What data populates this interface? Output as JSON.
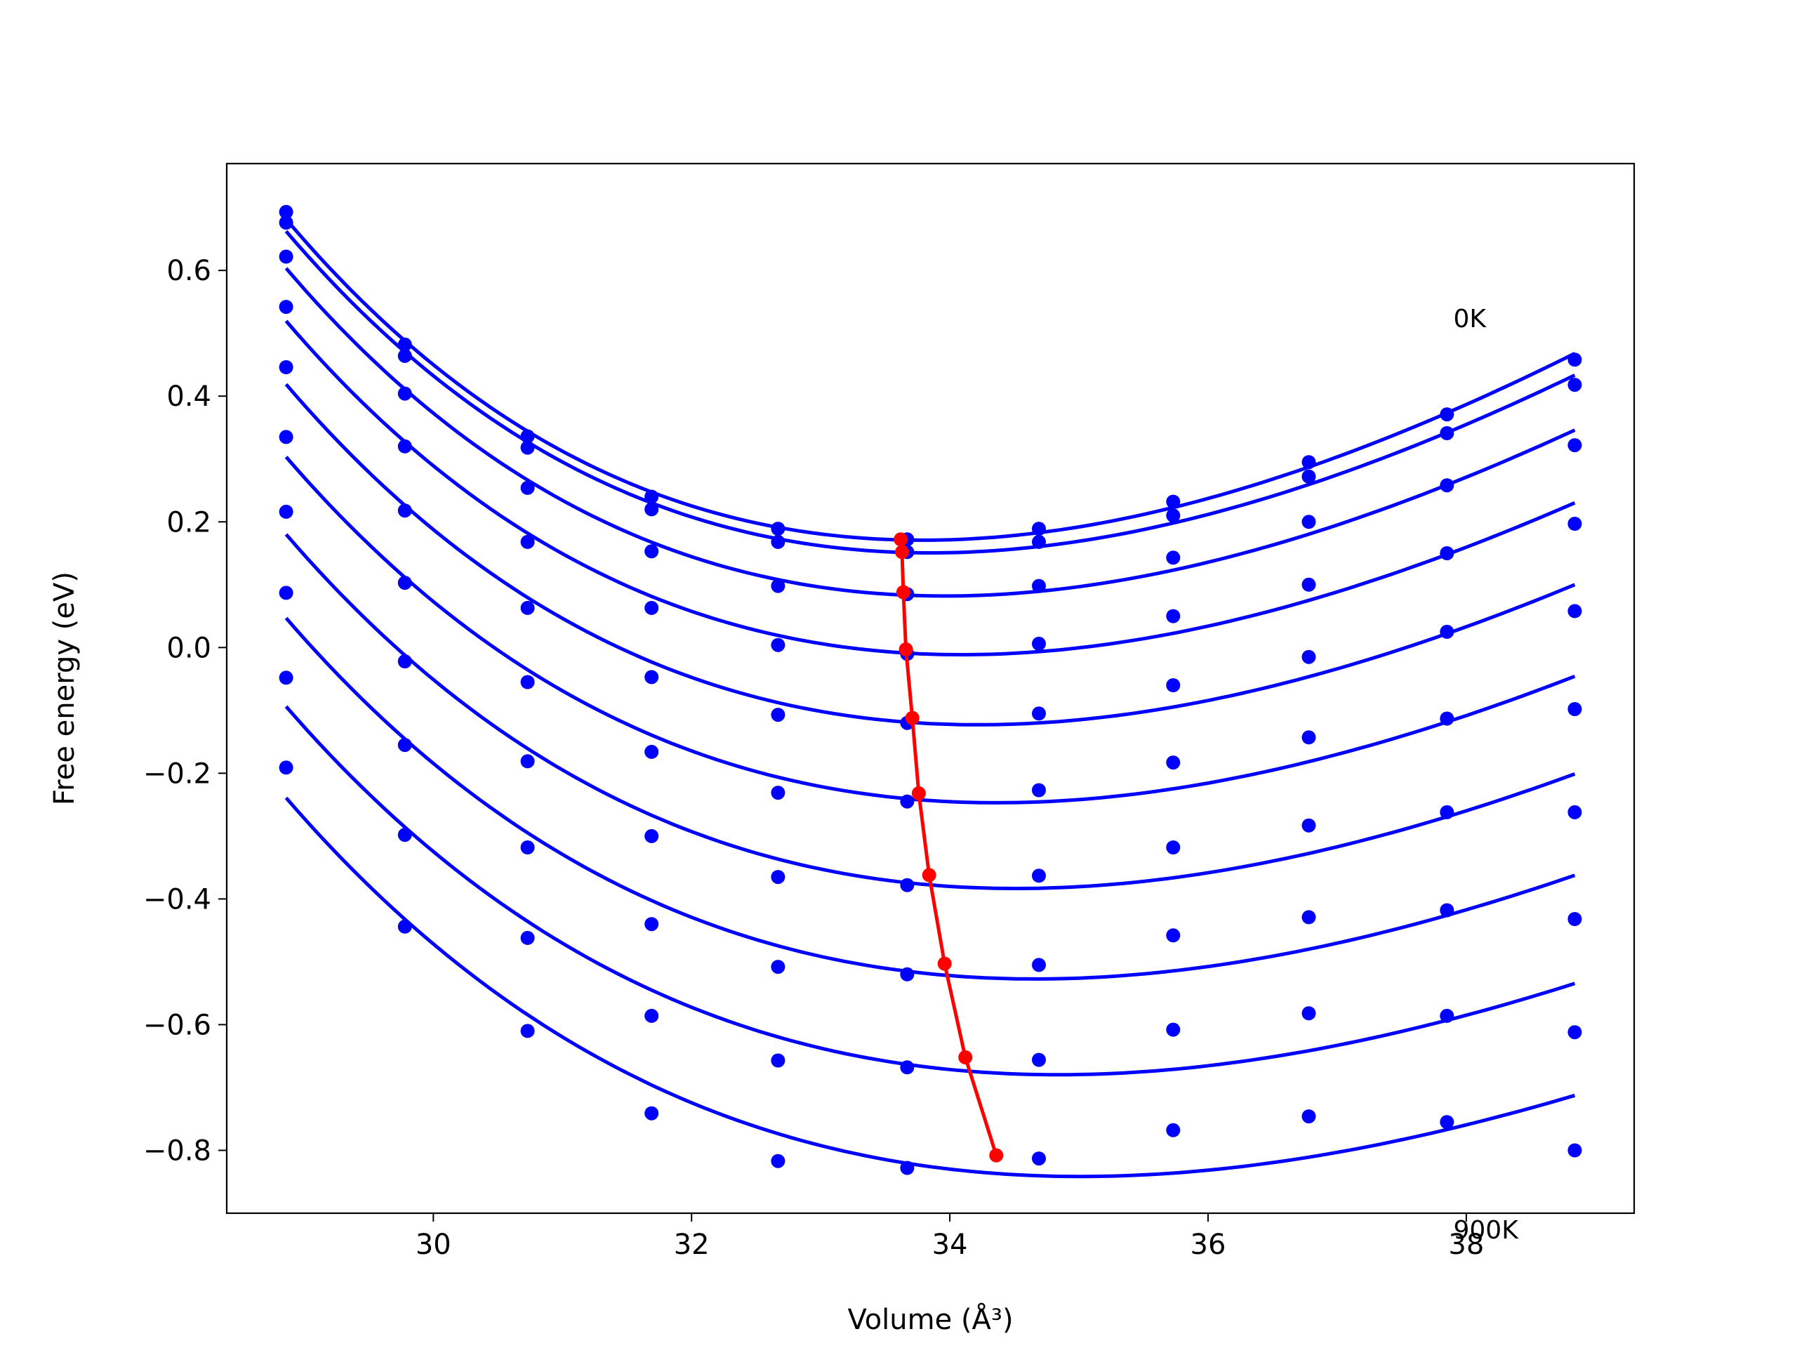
{
  "chart_data": {
    "type": "line",
    "title": "",
    "xlabel": "Volume (Å³)",
    "ylabel": "Free energy (eV)",
    "xlim": [
      28.4,
      39.3
    ],
    "ylim": [
      -0.9,
      0.77
    ],
    "grid": false,
    "xticks": [
      30,
      32,
      34,
      36,
      38
    ],
    "xtick_labels": [
      "30",
      "32",
      "34",
      "36",
      "38"
    ],
    "yticks": [
      -0.8,
      -0.6,
      -0.4,
      -0.2,
      0.0,
      0.2,
      0.4,
      0.6
    ],
    "ytick_labels": [
      "−0.8",
      "−0.6",
      "−0.4",
      "−0.2",
      "0.0",
      "0.2",
      "0.4",
      "0.6"
    ],
    "annotations": [
      {
        "text": "0K",
        "x": 37.9,
        "y": 0.51
      },
      {
        "text": "900K",
        "x": 37.9,
        "y": -0.94
      }
    ],
    "curve_color": "#0000ff",
    "min_line_color": "#ff0000",
    "volumes": [
      28.86,
      29.78,
      30.73,
      31.69,
      32.67,
      33.67,
      34.69,
      35.73,
      36.78,
      37.85,
      38.84
    ],
    "series": [
      {
        "values": [
          0.693,
          0.482,
          0.336,
          0.24,
          0.189,
          0.172,
          0.189,
          0.232,
          0.295,
          0.371,
          0.458
        ]
      },
      {
        "values": [
          0.676,
          0.464,
          0.318,
          0.22,
          0.168,
          0.152,
          0.168,
          0.21,
          0.272,
          0.341,
          0.418
        ]
      },
      {
        "values": [
          0.622,
          0.404,
          0.254,
          0.153,
          0.098,
          0.085,
          0.098,
          0.143,
          0.2,
          0.258,
          0.322
        ]
      },
      {
        "values": [
          0.542,
          0.32,
          0.168,
          0.063,
          0.004,
          -0.01,
          0.006,
          0.05,
          0.1,
          0.15,
          0.197
        ]
      },
      {
        "values": [
          0.446,
          0.218,
          0.063,
          -0.047,
          -0.107,
          -0.12,
          -0.105,
          -0.06,
          -0.015,
          0.025,
          0.058
        ]
      },
      {
        "values": [
          0.335,
          0.103,
          -0.055,
          -0.166,
          -0.231,
          -0.245,
          -0.227,
          -0.183,
          -0.143,
          -0.113,
          -0.098
        ]
      },
      {
        "values": [
          0.216,
          -0.022,
          -0.181,
          -0.3,
          -0.365,
          -0.378,
          -0.363,
          -0.318,
          -0.283,
          -0.262,
          -0.262
        ]
      },
      {
        "values": [
          0.087,
          -0.155,
          -0.318,
          -0.44,
          -0.508,
          -0.52,
          -0.505,
          -0.458,
          -0.429,
          -0.418,
          -0.432
        ]
      },
      {
        "values": [
          -0.048,
          -0.298,
          -0.462,
          -0.586,
          -0.657,
          -0.668,
          -0.656,
          -0.608,
          -0.582,
          -0.586,
          -0.612
        ]
      },
      {
        "values": [
          -0.191,
          -0.444,
          -0.61,
          -0.741,
          -0.817,
          -0.828,
          -0.813,
          -0.768,
          -0.746,
          -0.755,
          -0.8
        ]
      }
    ],
    "minima": {
      "x": [
        33.62,
        33.63,
        33.64,
        33.66,
        33.71,
        33.76,
        33.84,
        33.96,
        34.12,
        34.36
      ],
      "y": [
        0.172,
        0.152,
        0.088,
        -0.003,
        -0.112,
        -0.232,
        -0.362,
        -0.503,
        -0.652,
        -0.808
      ]
    }
  }
}
